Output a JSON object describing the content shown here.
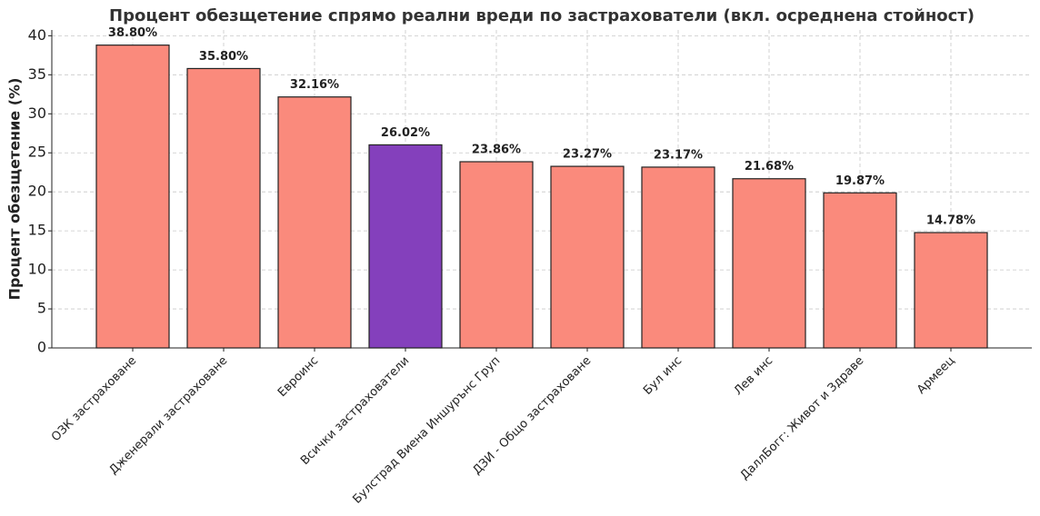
{
  "chart_data": {
    "type": "bar",
    "title": "Процент обезщетение спрямо реални вреди по застрахователи (вкл. осреднена стойност)",
    "y_label": "Процент обезщетение (%)",
    "categories": [
      "ОЗК застраховане",
      "Дженерали застраховане",
      "Евроинс",
      "Всички застрахователи",
      "Булстрад Виена Иншурънс Груп",
      "ДЗИ - Общо застраховане",
      "Бул инс",
      "Лев инс",
      "ДаллБогг: Живот и Здраве",
      "Армеец"
    ],
    "values": [
      38.8,
      35.8,
      32.16,
      26.02,
      23.86,
      23.27,
      23.17,
      21.68,
      19.87,
      14.78
    ],
    "value_labels": [
      "38.80%",
      "35.80%",
      "32.16%",
      "26.02%",
      "23.86%",
      "23.27%",
      "23.17%",
      "21.68%",
      "19.87%",
      "14.78%"
    ],
    "colors": [
      "#fa8a7c",
      "#fa8a7c",
      "#fa8a7c",
      "#8440bc",
      "#fa8a7c",
      "#fa8a7c",
      "#fa8a7c",
      "#fa8a7c",
      "#fa8a7c",
      "#fa8a7c"
    ],
    "ylim": [
      0,
      40.74
    ],
    "yticks": [
      0,
      5,
      10,
      15,
      20,
      25,
      30,
      35,
      40
    ],
    "grid": true
  }
}
